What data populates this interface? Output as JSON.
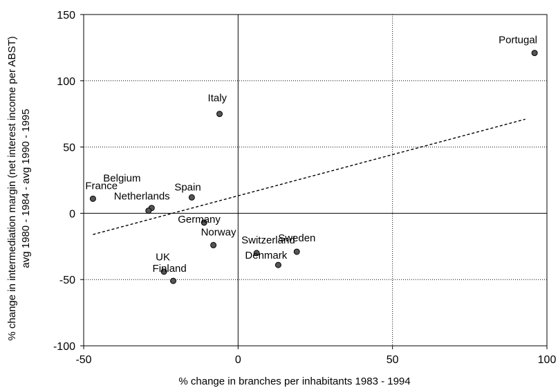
{
  "chart_data": {
    "type": "scatter",
    "title": "",
    "xlabel": "% change in branches per inhabitants 1983 - 1994",
    "ylabel": "% change in intermediation margin (net interest income per ABST)",
    "ylabel2": "avg 1980 - 1984 - avg 1990 - 1995",
    "xlim": [
      -50,
      100
    ],
    "ylim": [
      -100,
      150
    ],
    "xticks": [
      -50,
      0,
      50,
      100
    ],
    "yticks": [
      -100,
      -50,
      0,
      50,
      100,
      150
    ],
    "xtick_labels": [
      "-50",
      "0",
      "50",
      "100"
    ],
    "ytick_labels": [
      "-100",
      "-50",
      "0",
      "50",
      "100",
      "150"
    ],
    "grid": "dotted at major ticks",
    "points": [
      {
        "label": "Portugal",
        "x": 96,
        "y": 121
      },
      {
        "label": "Italy",
        "x": -6,
        "y": 75
      },
      {
        "label": "Belgium",
        "x": -28,
        "y": 4
      },
      {
        "label": "France",
        "x": -47,
        "y": 11
      },
      {
        "label": "Spain",
        "x": -15,
        "y": 12
      },
      {
        "label": "Netherlands",
        "x": -29,
        "y": 2
      },
      {
        "label": "Germany",
        "x": -11,
        "y": -7
      },
      {
        "label": "Norway",
        "x": -8,
        "y": -24
      },
      {
        "label": "Switzerland",
        "x": 6,
        "y": -30
      },
      {
        "label": "Sweden",
        "x": 19,
        "y": -29
      },
      {
        "label": "Denmark",
        "x": 13,
        "y": -39
      },
      {
        "label": "UK",
        "x": -24,
        "y": -44
      },
      {
        "label": "Finland",
        "x": -21,
        "y": -51
      }
    ],
    "trendline": {
      "style": "dashed",
      "from": {
        "x": -47,
        "y": -16
      },
      "to": {
        "x": 93,
        "y": 71
      }
    }
  }
}
